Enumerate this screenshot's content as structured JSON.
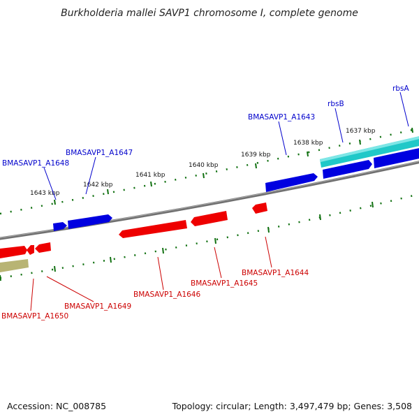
{
  "title": "Burkholderia mallei SAVP1 chromosome I, complete genome",
  "accession": "Accession: NC_008785",
  "topology": "Topology: circular; Length: 3,497,479 bp; Genes: 3,508",
  "colors": {
    "forward_gene": "#0000e0",
    "reverse_gene": "#ee0000",
    "rrna_gene": "#20c8c8",
    "other_feature": "#b8b474",
    "backbone": "#808080",
    "tick": "#107010",
    "forward_label": "#0000cc",
    "reverse_label": "#cc0000"
  },
  "ticks": [
    {
      "label": "1643 kbp"
    },
    {
      "label": "1642 kbp"
    },
    {
      "label": "1641 kbp"
    },
    {
      "label": "1640 kbp"
    },
    {
      "label": "1639 kbp"
    },
    {
      "label": "1638 kbp"
    },
    {
      "label": "1637 kbp"
    }
  ],
  "genes_forward": [
    {
      "label": "BMASAVP1_A1648"
    },
    {
      "label": "BMASAVP1_A1647"
    },
    {
      "label": "BMASAVP1_A1643"
    },
    {
      "label": "rbsB"
    },
    {
      "label": "rbsA"
    }
  ],
  "genes_reverse": [
    {
      "label": "BMASAVP1_A1650"
    },
    {
      "label": "BMASAVP1_A1649"
    },
    {
      "label": "BMASAVP1_A1646"
    },
    {
      "label": "BMASAVP1_A1645"
    },
    {
      "label": "BMASAVP1_A1644"
    }
  ]
}
